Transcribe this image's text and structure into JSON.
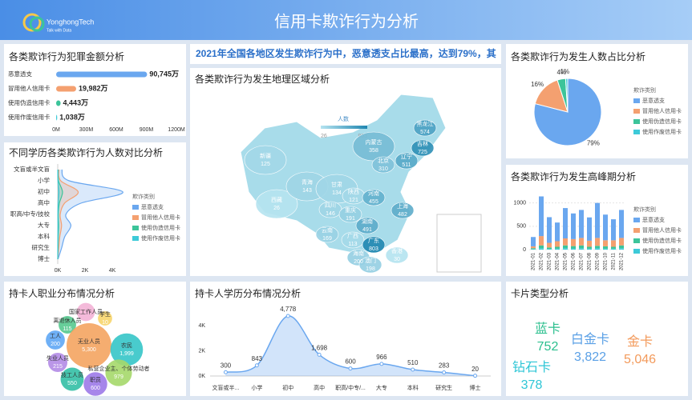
{
  "header": {
    "title": "信用卡欺诈行为分析",
    "logo": "YonghongTech",
    "slogan": "Talk with Data"
  },
  "banner": "2021年全国各地区发生欺诈行为中，恶意透支占比最高，达到79%，其",
  "chart_data": [
    {
      "type": "hbar",
      "title": "各类欺诈行为犯罪金额分析",
      "categories": [
        "恶意透支",
        "冒用他人信用卡",
        "使用伪造信用卡",
        "使用作废信用卡"
      ],
      "values": [
        907.45,
        199.82,
        44.43,
        10.38
      ],
      "value_labels": [
        "90,745万",
        "19,982万",
        "4,443万",
        "1,038万"
      ],
      "colors": [
        "#6aa7ef",
        "#f4a070",
        "#3cc49a",
        "#3dcad8"
      ],
      "xlim": [
        0,
        1200
      ],
      "xticks": [
        {
          "value": 0,
          "label": "0M"
        },
        {
          "value": 300,
          "label": "300M"
        },
        {
          "value": 600,
          "label": "600M"
        },
        {
          "value": 900,
          "label": "900M"
        },
        {
          "value": 1200,
          "label": "1200M"
        }
      ]
    },
    {
      "type": "vline",
      "title": "不同学历各类欺诈行为人数对比分析",
      "legend_title": "欺诈类别",
      "categories": [
        "文盲或半文盲",
        "小学",
        "初中",
        "高中",
        "职高/中专/技校",
        "大专",
        "本科",
        "研究生",
        "博士"
      ],
      "series": [
        {
          "name": "恶意透支",
          "color": "#6aa7ef",
          "values": [
            300,
            843,
            4778,
            1698,
            600,
            966,
            510,
            283,
            20
          ]
        },
        {
          "name": "冒用他人信用卡",
          "color": "#f4a070",
          "values": [
            80,
            220,
            1500,
            500,
            180,
            280,
            150,
            80,
            6
          ]
        },
        {
          "name": "使用伪造信用卡",
          "color": "#3cc49a",
          "values": [
            25,
            60,
            350,
            120,
            45,
            70,
            40,
            20,
            2
          ]
        },
        {
          "name": "使用作废信用卡",
          "color": "#3dcad8",
          "values": [
            8,
            18,
            90,
            30,
            12,
            18,
            10,
            5,
            1
          ]
        }
      ],
      "xlim": [
        0,
        5000
      ],
      "xticks": [
        {
          "value": 0,
          "label": "0K"
        },
        {
          "value": 2000,
          "label": "2K"
        },
        {
          "value": 4000,
          "label": "4K"
        }
      ]
    },
    {
      "type": "bubble",
      "title": "持卡人职业分布情况分析",
      "categories": [
        "国家工作人员",
        "离退休人员",
        "学生",
        "工人",
        "无业人员",
        "农民",
        "失业人员",
        "私营企业主、个体劳动者",
        "技工人员",
        "职员"
      ],
      "values": [
        150,
        115,
        10,
        200,
        5300,
        1999,
        215,
        979,
        550,
        600
      ],
      "value_labels": [
        null,
        "115",
        "10",
        "200",
        "5,300",
        "1,999",
        "215",
        "979",
        "550",
        "600"
      ],
      "colors": [
        "#f3b3d6",
        "#56c98f",
        "#f7d56b",
        "#5fa7f5",
        "#f4a460",
        "#35c5c8",
        "#b28be6",
        "#a5d86a",
        "#33bfa5",
        "#9c79e8"
      ]
    },
    {
      "type": "map",
      "title": "各类欺诈行为发生地理区域分析",
      "legend_title": "人数",
      "visual_range": [
        26,
        803
      ],
      "categories": [
        "新疆",
        "西藏",
        "青海",
        "甘肃",
        "内蒙古",
        "黑龙江",
        "吉林",
        "辽宁",
        "北京",
        "陕西",
        "四川",
        "重庆",
        "河南",
        "湖南",
        "云南",
        "广西",
        "广东",
        "海南",
        "澳门",
        "香港",
        "上海"
      ],
      "values": [
        125,
        26,
        143,
        134,
        358,
        574,
        725,
        511,
        310,
        121,
        146,
        191,
        455,
        491,
        169,
        113,
        803,
        200,
        198,
        30,
        482
      ]
    },
    {
      "type": "pie",
      "title": "各类欺诈行为发生人数占比分析",
      "legend_title": "欺诈类别",
      "categories": [
        "恶意透支",
        "冒用他人信用卡",
        "使用伪造信用卡",
        "使用作废信用卡"
      ],
      "values": [
        79,
        16,
        4,
        1
      ],
      "value_labels": [
        "79%",
        "16%",
        "4%",
        "1%"
      ],
      "colors": [
        "#6aa7ef",
        "#f4a070",
        "#3cc49a",
        "#3dcad8"
      ]
    },
    {
      "type": "stacked",
      "title": "各类欺诈行为发生高峰期分析",
      "legend_title": "欺诈类别",
      "categories": [
        "2021-01",
        "2021-02",
        "2021-03",
        "2021-04",
        "2021-05",
        "2021-06",
        "2021-07",
        "2021-08",
        "2021-09",
        "2021-10",
        "2021-11",
        "2021-12"
      ],
      "series": [
        {
          "name": "恶意透支",
          "color": "#6aa7ef",
          "values": [
            200,
            850,
            550,
            400,
            650,
            550,
            600,
            500,
            750,
            550,
            450,
            600
          ]
        },
        {
          "name": "冒用他人信用卡",
          "color": "#f4a070",
          "values": [
            40,
            200,
            100,
            120,
            150,
            150,
            160,
            130,
            170,
            130,
            140,
            160
          ]
        },
        {
          "name": "使用伪造信用卡",
          "color": "#3cc49a",
          "values": [
            20,
            60,
            30,
            40,
            60,
            50,
            60,
            40,
            50,
            50,
            40,
            60
          ]
        },
        {
          "name": "使用作废信用卡",
          "color": "#3dcad8",
          "values": [
            10,
            30,
            15,
            20,
            30,
            25,
            30,
            20,
            30,
            20,
            20,
            30
          ]
        }
      ],
      "ylim": [
        0,
        1200
      ],
      "yticks": [
        0,
        500,
        1000
      ]
    },
    {
      "type": "area",
      "title": "持卡人学历分布情况分析",
      "categories": [
        "文盲或半...",
        "小学",
        "初中",
        "高中",
        "职高/中专/...",
        "大专",
        "本科",
        "研究生",
        "博士"
      ],
      "values": [
        300,
        843,
        4778,
        1698,
        600,
        966,
        510,
        283,
        20
      ],
      "value_labels": [
        "300",
        "843",
        "4,778",
        "1,698",
        "600",
        "966",
        "510",
        "283",
        "20"
      ],
      "color": "#6aa7ef",
      "ylim": [
        0,
        5000
      ],
      "yticks": [
        {
          "value": 0,
          "label": "0K"
        },
        {
          "value": 2000,
          "label": "2K"
        },
        {
          "value": 4000,
          "label": "4K"
        }
      ]
    },
    {
      "type": "cloud",
      "title": "卡片类型分析",
      "categories": [
        "蓝卡",
        "白金卡",
        "金卡",
        "钻石卡"
      ],
      "values": [
        752,
        3822,
        5046,
        378
      ],
      "value_labels": [
        "752",
        "3,822",
        "5,046",
        "378"
      ],
      "colors": [
        "#2bbf8e",
        "#5aa0e6",
        "#f39a5b",
        "#2ec6d6"
      ]
    }
  ]
}
